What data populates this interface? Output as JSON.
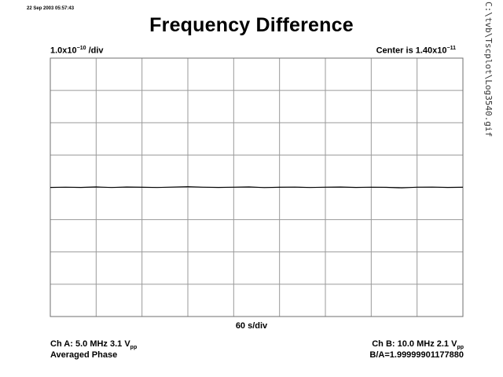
{
  "timestamp": "22 Sep 2003 05:57:43",
  "title": "Frequency Difference",
  "file_path": "C:\\tvb\\Tscplot\\Log3540.gif",
  "scale_label": {
    "prefix": "1.0x10",
    "exp": "−10",
    "suffix": " /div"
  },
  "center_label": {
    "prefix": "Center is 1.40x10",
    "exp": "−11"
  },
  "x_scale_label": "60 s/div",
  "ch_a": {
    "text": "Ch A: 5.0 MHz 3.1 V",
    "sub": "pp"
  },
  "ch_a_mode": "Averaged Phase",
  "ch_b": {
    "text": "Ch B: 10.0 MHz 2.1 V",
    "sub": "pp"
  },
  "ratio": "B/A=1.99999901177880",
  "colors": {
    "grid": "#9a9a9a",
    "trace": "#000000",
    "frame": "#6f6f6f"
  },
  "chart_data": {
    "type": "line",
    "title": "Frequency Difference",
    "xlabel": "60 s/div",
    "ylabel": "1.0x10^-10 /div",
    "x_divisions": 9,
    "y_divisions": 8,
    "x_unit_per_div_s": 60,
    "y_unit_per_div": 1e-10,
    "y_center": 1.4e-11,
    "xlim": [
      0,
      540
    ],
    "ylim": [
      -4e-10,
      4e-10
    ],
    "grid": true,
    "series": [
      {
        "x": [
          0,
          20,
          40,
          60,
          80,
          100,
          120,
          140,
          160,
          180,
          200,
          220,
          240,
          260,
          280,
          300,
          320,
          340,
          360,
          380,
          400,
          420,
          440,
          460,
          480,
          500,
          520,
          540
        ],
        "y": [
          -3e-13,
          5e-13,
          -2e-13,
          1.2e-12,
          -6e-13,
          1e-12,
          3e-13,
          -4e-13,
          7e-13,
          2e-12,
          5e-13,
          -3e-13,
          6e-13,
          1.1e-12,
          -8e-13,
          2e-13,
          8e-13,
          -5e-13,
          4e-13,
          9e-13,
          -2e-13,
          6e-13,
          1e-13,
          -1.6e-12,
          4e-13,
          7e-13,
          -3e-13,
          2e-13
        ]
      }
    ]
  }
}
